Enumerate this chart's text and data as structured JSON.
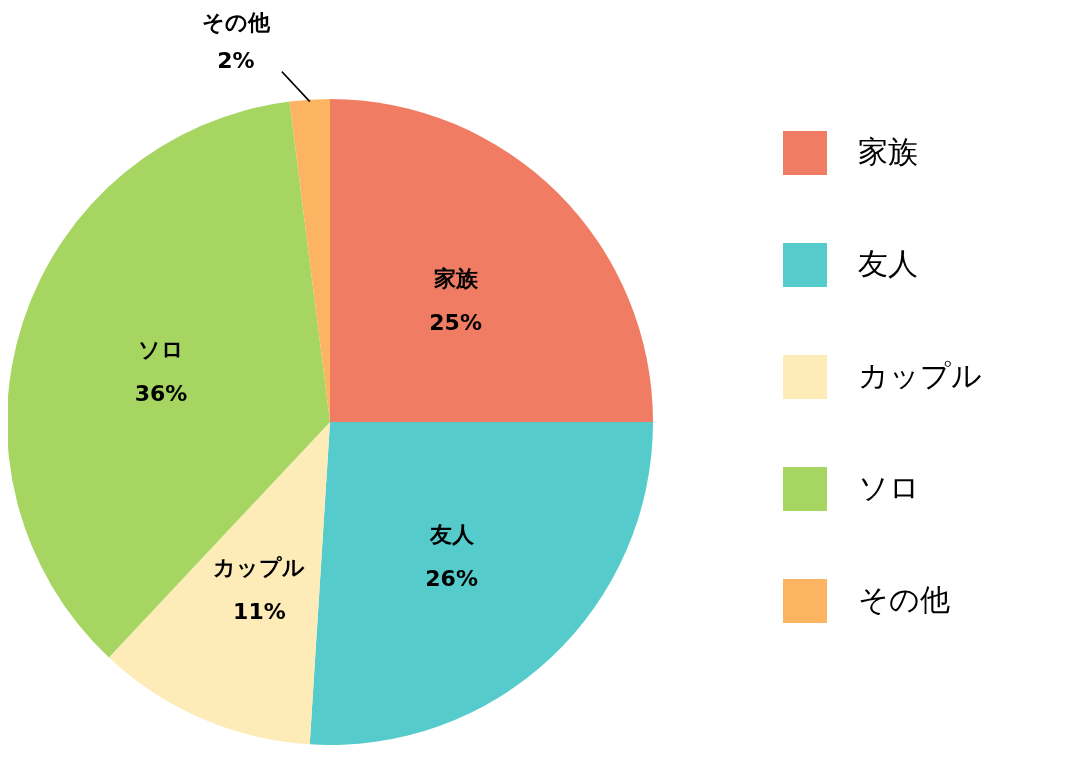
{
  "chart_data": {
    "type": "pie",
    "categories": [
      "家族",
      "友人",
      "カップル",
      "ソロ",
      "その他"
    ],
    "values": [
      25,
      26,
      11,
      36,
      2
    ],
    "value_labels": [
      "25%",
      "26%",
      "11%",
      "36%",
      "2%"
    ],
    "colors": [
      "#f07c64",
      "#55cccb",
      "#fdebb8",
      "#a6d661",
      "#fdb462"
    ],
    "legend": "right"
  }
}
